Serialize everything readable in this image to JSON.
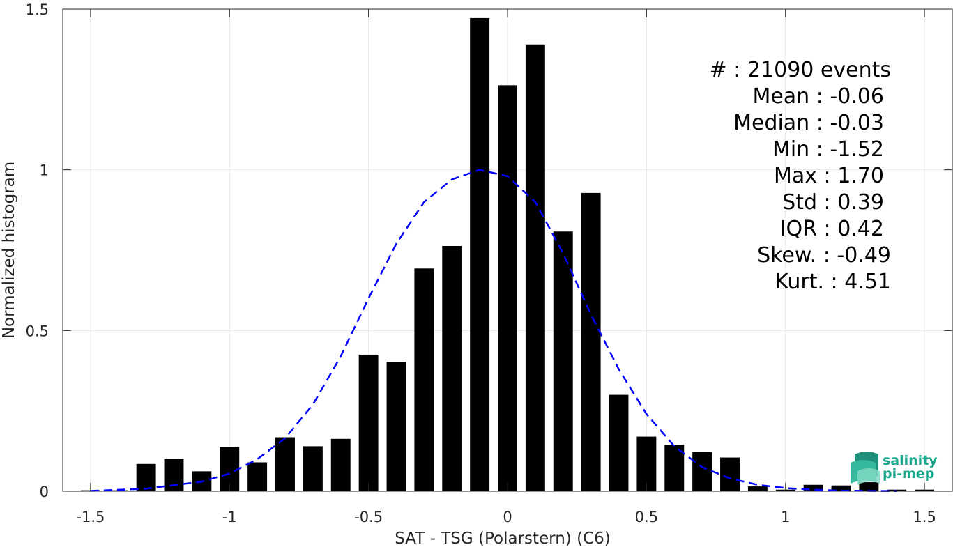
{
  "chart_data": {
    "type": "bar",
    "xlabel": "SAT - TSG (Polarstern) (C6)",
    "ylabel": "Normalized histogram",
    "xlim": [
      -1.6,
      1.6
    ],
    "ylim": [
      0,
      1.5
    ],
    "xticks": [
      -1.5,
      -1,
      -0.5,
      0,
      0.5,
      1,
      1.5
    ],
    "xtick_labels": [
      "-1.5",
      "-1",
      "-0.5",
      "0",
      "0.5",
      "1",
      "1.5"
    ],
    "yticks": [
      0,
      0.5,
      1,
      1.5
    ],
    "ytick_labels": [
      "0",
      "0.5",
      "1",
      "1.5"
    ],
    "grid": true,
    "bar_width": 0.07,
    "bars": {
      "name": "",
      "color": "#000000",
      "x": [
        -1.5,
        -1.4,
        -1.3,
        -1.2,
        -1.1,
        -1.0,
        -0.9,
        -0.8,
        -0.7,
        -0.6,
        -0.5,
        -0.4,
        -0.3,
        -0.2,
        -0.1,
        0.0,
        0.1,
        0.2,
        0.3,
        0.4,
        0.5,
        0.6,
        0.7,
        0.8,
        0.9,
        1.0,
        1.1,
        1.2,
        1.3,
        1.4,
        1.5
      ],
      "values": [
        0.003,
        0.003,
        0.085,
        0.1,
        0.062,
        0.138,
        0.09,
        0.168,
        0.14,
        0.163,
        0.425,
        0.403,
        0.693,
        0.763,
        1.472,
        1.263,
        1.39,
        0.808,
        0.928,
        0.3,
        0.17,
        0.145,
        0.122,
        0.105,
        0.015,
        0.005,
        0.02,
        0.018,
        0.028,
        0.005,
        0.005
      ]
    },
    "fit": {
      "name": "",
      "color": "#0000ff",
      "style": "dashed",
      "x": [
        -1.5,
        -1.3,
        -1.1,
        -1.0,
        -0.9,
        -0.8,
        -0.7,
        -0.6,
        -0.5,
        -0.4,
        -0.3,
        -0.2,
        -0.1,
        0.0,
        0.1,
        0.2,
        0.3,
        0.4,
        0.5,
        0.6,
        0.7,
        0.8,
        0.9,
        1.0,
        1.1,
        1.2,
        1.3,
        1.4
      ],
      "y": [
        0.001,
        0.008,
        0.03,
        0.055,
        0.1,
        0.165,
        0.27,
        0.42,
        0.6,
        0.77,
        0.9,
        0.97,
        1.0,
        0.98,
        0.9,
        0.74,
        0.55,
        0.38,
        0.24,
        0.14,
        0.075,
        0.04,
        0.02,
        0.01,
        0.005,
        0.002,
        0.001,
        0.0005
      ]
    }
  },
  "stats": {
    "count": "#  : 21090 events",
    "mean": "Mean : -0.06",
    "median": "Median : -0.03",
    "min": "Min : -1.52",
    "max": "Max : 1.70",
    "std": "Std : 0.39",
    "iqr": "IQR : 0.42",
    "skew": "Skew. : -0.49",
    "kurt": "Kurt. : 4.51"
  },
  "logo": {
    "line1": "salinity",
    "line2": "pi-mep",
    "color": "#1aa88c"
  }
}
